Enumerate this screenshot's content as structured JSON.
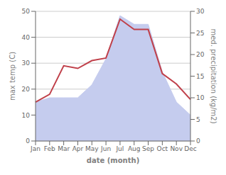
{
  "chart_data": {
    "type": "line",
    "categories": [
      "Jan",
      "Feb",
      "Mar",
      "Apr",
      "May",
      "Jun",
      "Jul",
      "Aug",
      "Sep",
      "Oct",
      "Nov",
      "Dec"
    ],
    "xlabel": "date (month)",
    "ylabel": "max temp (C)",
    "y2label": "med. precipitation (kg/m2)",
    "series": [
      {
        "type": "area",
        "axis": "y2",
        "color": "#c5ccee",
        "values": [
          9,
          10,
          10,
          10,
          13,
          19,
          29,
          27,
          27,
          16,
          9,
          6
        ]
      },
      {
        "type": "line",
        "color": "#c0404a",
        "values": [
          15,
          18,
          29,
          28,
          31,
          32,
          47,
          43,
          43,
          26,
          22,
          16
        ]
      }
    ],
    "ylim": [
      0,
      50
    ],
    "yticks": [
      0,
      10,
      20,
      30,
      40,
      50
    ],
    "y2lim": [
      0,
      30
    ],
    "y2ticks": [
      0,
      5,
      10,
      15,
      20,
      25,
      30
    ],
    "grid": true
  }
}
